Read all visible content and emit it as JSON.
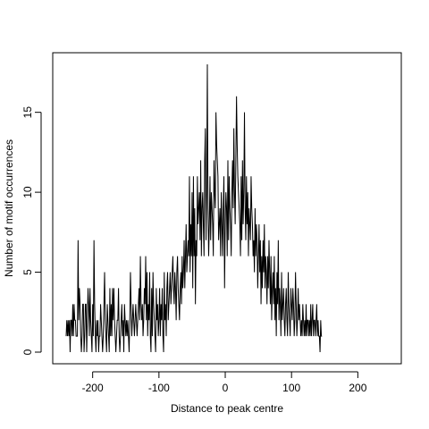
{
  "chart_data": {
    "type": "line",
    "title": "",
    "xlabel": "Distance to peak centre",
    "ylabel": "Number of motif occurrences",
    "xlim": [
      -240,
      244
    ],
    "ylim": [
      0,
      18
    ],
    "x_ticks": [
      -200,
      -100,
      0,
      100,
      200
    ],
    "x_tick_labels": [
      "-200",
      "-100",
      "0",
      "100",
      "200"
    ],
    "y_ticks": [
      0,
      5,
      10,
      15
    ],
    "y_tick_labels": [
      "0",
      "5",
      "10",
      "15"
    ],
    "grid": false,
    "legend": "none",
    "line_color": "#000000",
    "series": [
      {
        "x_start": -240,
        "x_step": 1,
        "values": [
          1,
          2,
          1,
          2,
          1,
          2,
          0,
          2,
          2,
          1,
          3,
          1,
          3,
          2,
          2,
          1,
          1,
          1,
          7,
          2,
          4,
          3,
          1,
          0,
          1,
          3,
          3,
          0,
          1,
          3,
          3,
          0,
          2,
          4,
          3,
          1,
          4,
          2,
          1,
          0,
          3,
          1,
          7,
          3,
          1,
          0,
          2,
          1,
          2,
          0,
          1,
          1,
          3,
          2,
          1,
          0,
          1,
          3,
          5,
          2,
          1,
          0,
          3,
          2,
          1,
          0,
          4,
          1,
          3,
          1,
          4,
          2,
          4,
          2,
          1,
          0,
          1,
          2,
          2,
          4,
          1,
          0,
          1,
          2,
          3,
          1,
          2,
          0,
          3,
          2,
          1,
          2,
          1,
          2,
          1,
          0,
          2,
          5,
          3,
          1,
          2,
          3,
          2,
          1,
          2,
          3,
          2,
          1,
          2,
          3,
          4,
          2,
          6,
          3,
          2,
          3,
          1,
          2,
          4,
          3,
          6,
          2,
          5,
          1,
          3,
          2,
          5,
          1,
          0,
          4,
          1,
          5,
          3,
          2,
          1,
          0,
          4,
          2,
          3,
          1,
          2,
          4,
          1,
          3,
          2,
          4,
          1,
          0,
          5,
          2,
          3,
          1,
          4,
          5,
          2,
          3,
          4,
          5,
          3,
          4,
          5,
          6,
          4,
          3,
          5,
          4,
          2,
          5,
          6,
          4,
          3,
          2,
          4,
          5,
          3,
          6,
          4,
          5,
          7,
          4,
          6,
          8,
          5,
          6,
          7,
          6,
          11,
          5,
          8,
          6,
          10,
          4,
          11,
          6,
          9,
          3,
          7,
          6,
          11,
          8,
          9,
          10,
          7,
          12,
          6,
          9,
          10,
          8,
          6,
          12,
          14,
          7,
          10,
          18,
          9,
          6,
          8,
          11,
          7,
          10,
          9,
          8,
          6,
          12,
          10,
          9,
          15,
          13,
          12,
          11,
          7,
          8,
          9,
          6,
          10,
          8,
          6,
          9,
          11,
          4,
          8,
          10,
          9,
          6,
          12,
          7,
          11,
          9,
          8,
          6,
          10,
          12,
          9,
          14,
          10,
          8,
          12,
          16,
          13,
          11,
          10,
          9,
          8,
          6,
          11,
          7,
          12,
          8,
          10,
          15,
          9,
          7,
          11,
          8,
          10,
          6,
          9,
          8,
          7,
          11,
          9,
          8,
          6,
          7,
          5,
          9,
          6,
          8,
          7,
          4,
          6,
          8,
          5,
          7,
          3,
          6,
          4,
          7,
          5,
          8,
          4,
          6,
          5,
          3,
          6,
          4,
          7,
          5,
          3,
          6,
          2,
          4,
          5,
          3,
          6,
          2,
          4,
          1,
          5,
          3,
          7,
          2,
          4,
          3,
          1,
          5,
          2,
          3,
          4,
          2,
          1,
          3,
          4,
          2,
          1,
          5,
          3,
          2,
          1,
          4,
          3,
          2,
          4,
          3,
          1,
          2,
          5,
          3,
          1,
          2,
          4,
          2,
          3,
          2,
          1,
          2,
          1,
          3,
          2,
          1,
          2,
          1,
          3,
          1,
          2,
          2,
          1,
          2,
          1,
          3,
          1,
          2,
          3,
          1,
          2,
          2,
          1,
          2,
          3,
          1,
          2,
          1,
          1,
          0,
          2,
          1,
          1
        ]
      }
    ]
  }
}
